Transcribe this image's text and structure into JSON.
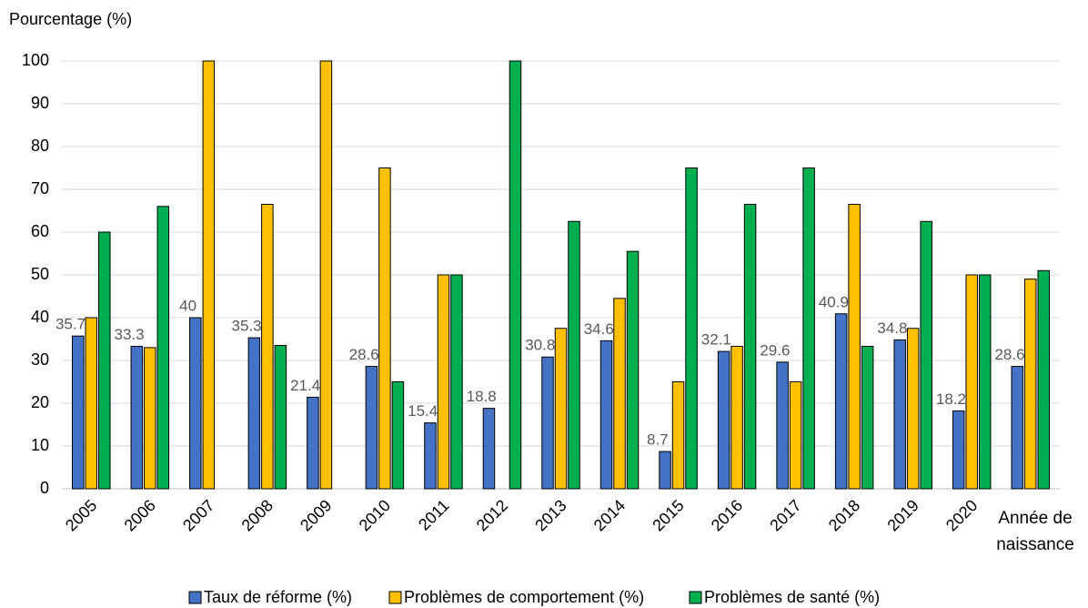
{
  "chart_data": {
    "type": "bar",
    "y_label": "Pourcentage (%)",
    "x_label": "Année de naissance",
    "categories": [
      "2005",
      "2006",
      "2007",
      "2008",
      "2009",
      "2010",
      "2011",
      "2012",
      "2013",
      "2014",
      "2015",
      "2016",
      "2017",
      "2018",
      "2019",
      "2020",
      null
    ],
    "series": [
      {
        "name": "Taux de réforme (%)",
        "color": "#4472c4",
        "values": [
          35.7,
          33.3,
          40,
          35.3,
          21.4,
          28.6,
          15.4,
          18.8,
          30.8,
          34.6,
          8.7,
          32.1,
          29.6,
          40.9,
          34.8,
          18.2,
          28.6
        ],
        "labels": true
      },
      {
        "name": "Problèmes de comportement (%)",
        "color": "#ffc000",
        "values": [
          40,
          33,
          100,
          66.5,
          100,
          75,
          50,
          null,
          37.5,
          44.5,
          25,
          33.3,
          25,
          66.5,
          37.5,
          50,
          49
        ]
      },
      {
        "name": "Problèmes de santé (%)",
        "color": "#00b050",
        "values": [
          60,
          66,
          null,
          33.5,
          null,
          25,
          50,
          100,
          62.5,
          55.5,
          75,
          66.5,
          75,
          33.3,
          62.5,
          50,
          51
        ]
      }
    ],
    "ylim": [
      0,
      100
    ],
    "yticks": [
      0,
      10,
      20,
      30,
      40,
      50,
      60,
      70,
      80,
      90,
      100
    ],
    "grid": true,
    "legend": "bottom"
  }
}
